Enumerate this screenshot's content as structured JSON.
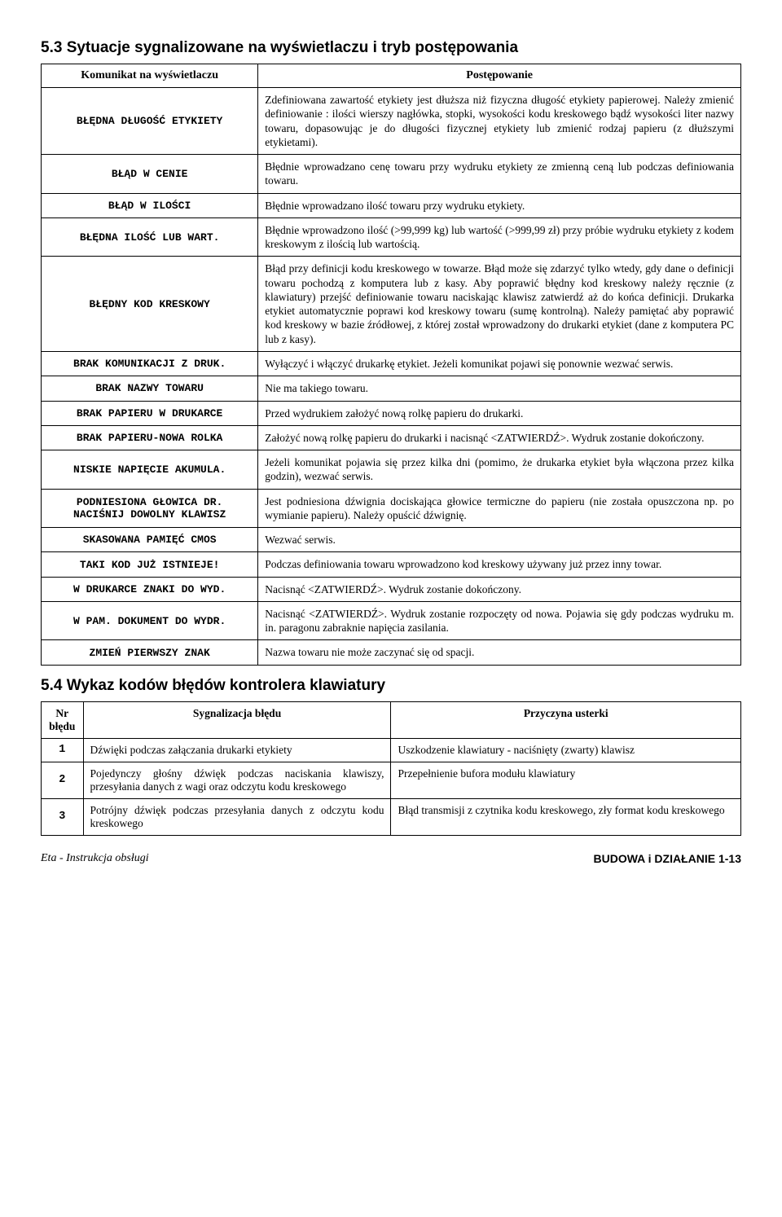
{
  "section53": {
    "title": "5.3 Sytuacje sygnalizowane na wyświetlaczu i tryb postępowania",
    "headers": {
      "col1": "Komunikat na wyświetlaczu",
      "col2": "Postępowanie"
    },
    "rows": [
      {
        "msg": "BŁĘDNA DŁUGOŚĆ ETYKIETY",
        "desc": "Zdefiniowana zawartość etykiety jest dłuższa niż fizyczna długość etykiety papierowej. Należy zmienić definiowanie : ilości wierszy nagłówka, stopki, wysokości kodu kreskowego bądź wysokości liter nazwy towaru, dopasowując je do długości fizycznej etykiety lub zmienić rodzaj papieru (z dłuższymi etykietami)."
      },
      {
        "msg": "BŁĄD W CENIE",
        "desc": "Błędnie wprowadzano cenę towaru przy wydruku etykiety ze zmienną ceną lub podczas definiowania towaru."
      },
      {
        "msg": "BŁĄD W ILOŚCI",
        "desc": "Błędnie wprowadzano ilość towaru przy wydruku etykiety."
      },
      {
        "msg": "BŁĘDNA ILOŚĆ LUB WART.",
        "desc": "Błędnie wprowadzono ilość (>99,999 kg) lub wartość (>999,99 zł) przy próbie wydruku etykiety z kodem kreskowym z ilością lub wartością."
      },
      {
        "msg": "BŁĘDNY KOD KRESKOWY",
        "desc": "Błąd przy definicji kodu kreskowego w towarze. Błąd może się zdarzyć tylko wtedy, gdy dane o definicji towaru pochodzą z komputera lub z kasy. Aby poprawić błędny kod kreskowy należy ręcznie (z klawiatury) przejść definiowanie towaru naciskając klawisz zatwierdź aż do końca definicji. Drukarka etykiet automatycznie poprawi kod kreskowy towaru (sumę kontrolną). Należy pamiętać aby poprawić kod kreskowy w bazie źródłowej, z której został wprowadzony do drukarki etykiet (dane z komputera PC lub z kasy)."
      },
      {
        "msg": "BRAK KOMUNIKACJI Z DRUK.",
        "desc": "Wyłączyć i włączyć drukarkę etykiet. Jeżeli komunikat pojawi się ponownie wezwać serwis."
      },
      {
        "msg": "BRAK NAZWY TOWARU",
        "desc": "Nie ma takiego towaru."
      },
      {
        "msg": "BRAK PAPIERU W DRUKARCE",
        "desc": "Przed wydrukiem założyć nową rolkę papieru do drukarki."
      },
      {
        "msg": "BRAK PAPIERU-NOWA ROLKA",
        "desc": "Założyć nową rolkę papieru do drukarki i nacisnąć <ZATWIERDŹ>. Wydruk zostanie dokończony."
      },
      {
        "msg": "NISKIE NAPIĘCIE AKUMULA.",
        "desc": "Jeżeli komunikat pojawia się przez kilka dni (pomimo, że drukarka etykiet była włączona przez kilka godzin), wezwać serwis."
      },
      {
        "msg": "PODNIESIONA GŁOWICA DR. NACIŚNIJ DOWOLNY KLAWISZ",
        "desc": "Jest podniesiona dźwignia dociskająca głowice termiczne do papieru (nie została opuszczona np. po wymianie papieru). Należy opuścić dźwignię."
      },
      {
        "msg": "SKASOWANA  PAMIĘĆ  CMOS",
        "desc": "Wezwać serwis."
      },
      {
        "msg": "TAKI KOD JUŻ ISTNIEJE!",
        "desc": "Podczas definiowania towaru wprowadzono kod kreskowy używany już przez inny towar."
      },
      {
        "msg": "W DRUKARCE ZNAKI DO WYD.",
        "desc": "Nacisnąć <ZATWIERDŹ>. Wydruk zostanie dokończony."
      },
      {
        "msg": "W PAM. DOKUMENT DO WYDR.",
        "desc": "Nacisnąć <ZATWIERDŹ>. Wydruk zostanie rozpoczęty od nowa. Pojawia się gdy podczas wydruku m. in. paragonu zabraknie napięcia zasilania."
      },
      {
        "msg": "ZMIEŃ PIERWSZY ZNAK",
        "desc": "Nazwa towaru nie może zaczynać się od spacji."
      }
    ]
  },
  "section54": {
    "title": "5.4 Wykaz kodów błędów kontrolera klawiatury",
    "headers": {
      "col1": "Nr błędu",
      "col2": "Sygnalizacja błędu",
      "col3": "Przyczyna usterki"
    },
    "rows": [
      {
        "nr": "1",
        "sig": "Dźwięki podczas załączania drukarki etykiety",
        "cause": "Uszkodzenie klawiatury - naciśnięty (zwarty) klawisz"
      },
      {
        "nr": "2",
        "sig": "Pojedynczy głośny dźwięk podczas naciskania klawiszy, przesyłania danych z wagi oraz odczytu kodu kreskowego",
        "cause": "Przepełnienie bufora modułu klawiatury"
      },
      {
        "nr": "3",
        "sig": "Potrójny dźwięk podczas przesyłania danych z odczytu kodu kreskowego",
        "cause": "Błąd transmisji z czytnika kodu kreskowego, zły format kodu kreskowego"
      }
    ]
  },
  "footer": {
    "left": "Eta - Instrukcja obsługi",
    "right": "BUDOWA i DZIAŁANIE  1-13"
  }
}
